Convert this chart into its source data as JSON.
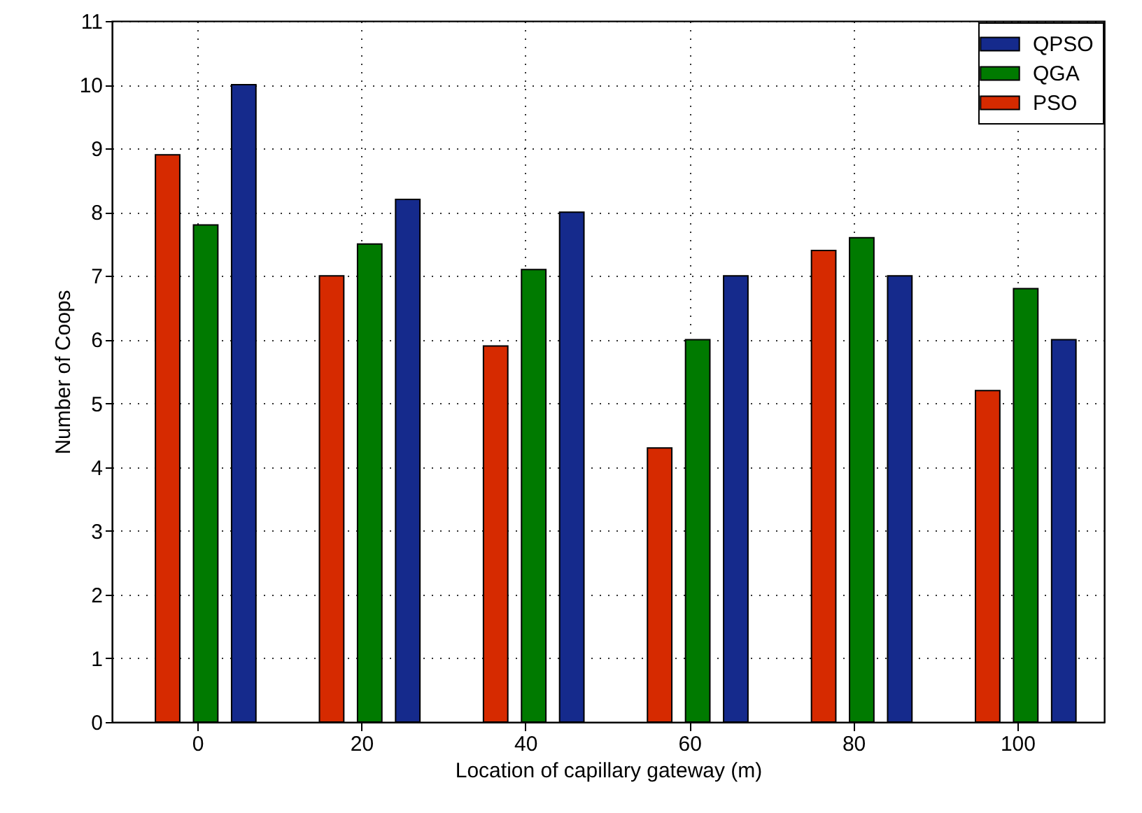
{
  "chart_data": {
    "type": "bar",
    "xlabel": "Location of capillary gateway (m)",
    "ylabel": "Number of Coops",
    "categories": [
      "0",
      "20",
      "40",
      "60",
      "80",
      "100"
    ],
    "series": [
      {
        "name": "PSO",
        "color": "#d62a00",
        "values": [
          8.9,
          7,
          5.9,
          4.3,
          7.4,
          5.2
        ]
      },
      {
        "name": "QGA",
        "color": "#007a00",
        "values": [
          7.8,
          7.5,
          7.1,
          6,
          7.6,
          6.8
        ]
      },
      {
        "name": "QPSO",
        "color": "#152a8c",
        "values": [
          10,
          8.2,
          8,
          7,
          7,
          6
        ]
      }
    ],
    "ylim": [
      0,
      11
    ],
    "yticks": [
      0,
      1,
      2,
      3,
      4,
      5,
      6,
      7,
      8,
      9,
      10,
      11
    ],
    "grid": true,
    "legend": "top right"
  }
}
